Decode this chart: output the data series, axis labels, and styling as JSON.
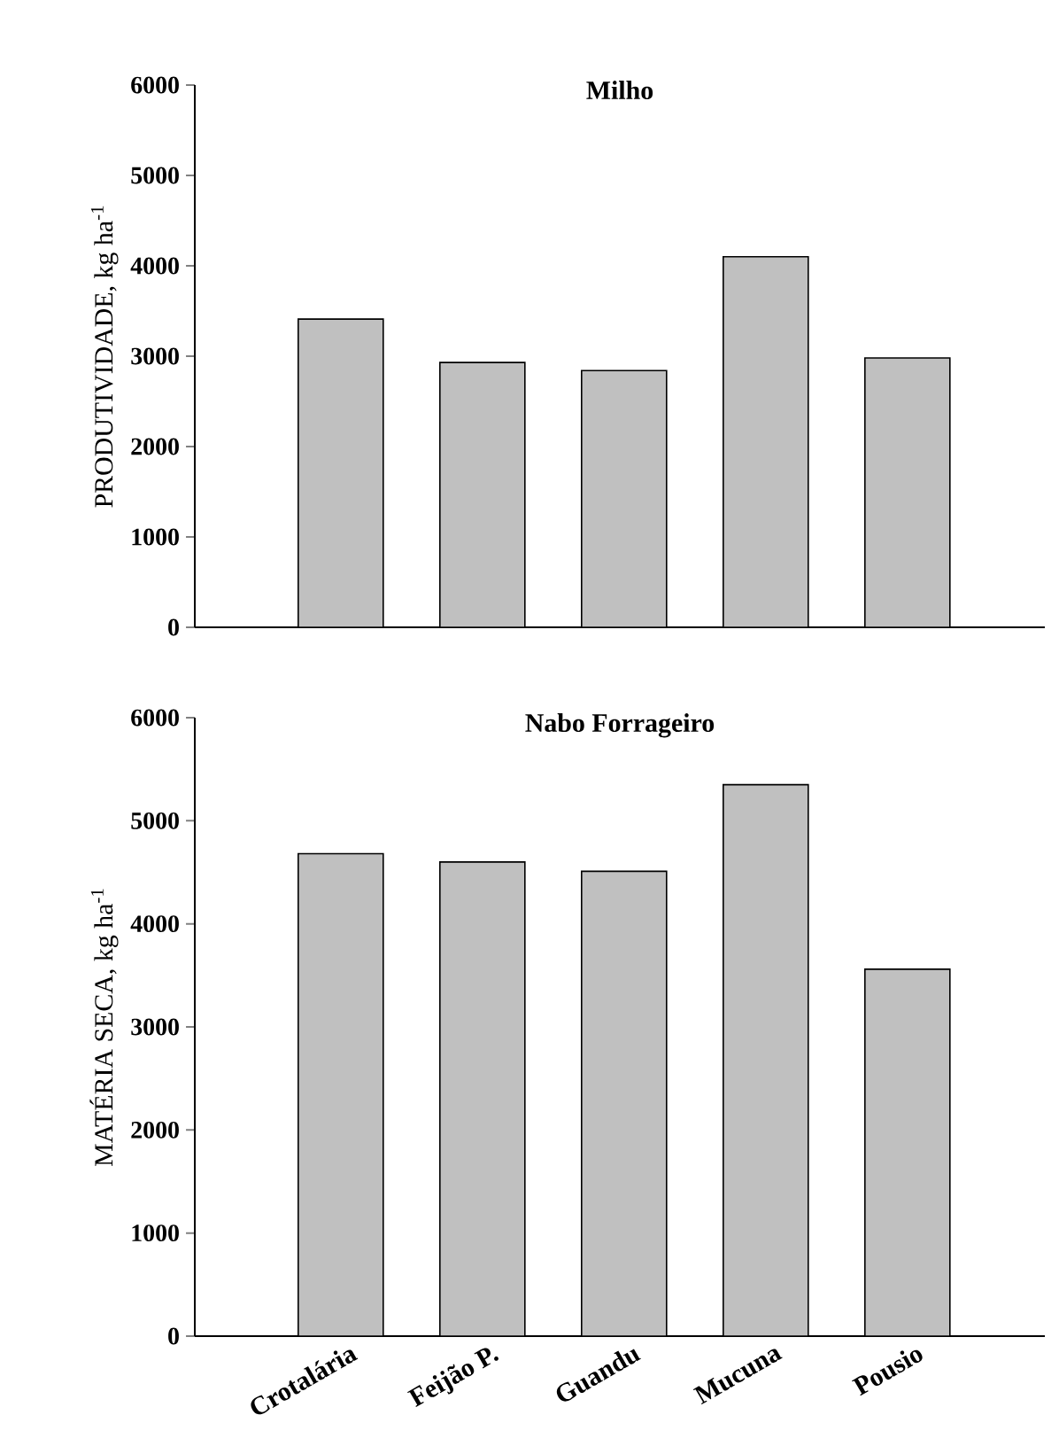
{
  "chart_data": [
    {
      "type": "bar",
      "title": "Milho",
      "ylabel": "PRODUTIVIDADE, kg ha$^{-1}$",
      "categories": [
        null,
        null,
        null,
        null,
        null
      ],
      "values": [
        3410,
        2930,
        2840,
        4100,
        2980
      ],
      "color": "#c0c0c0",
      "ylim": [
        0,
        6000
      ],
      "yticks": [
        0,
        1000,
        2000,
        3000,
        4000,
        5000,
        6000
      ]
    },
    {
      "type": "bar",
      "title": "Nabo Forrageiro",
      "ylabel": "MATÉRIA SECA, kg ha$^{-1}$",
      "categories": [
        "Crotalária",
        "Feijão P.",
        "Guandu",
        "Mucuna",
        "Pousio"
      ],
      "values": [
        4680,
        4600,
        4510,
        5350,
        3560
      ],
      "color": "#c0c0c0",
      "ylim": [
        0,
        6000
      ],
      "yticks": [
        0,
        1000,
        2000,
        3000,
        4000,
        5000,
        6000
      ]
    }
  ]
}
